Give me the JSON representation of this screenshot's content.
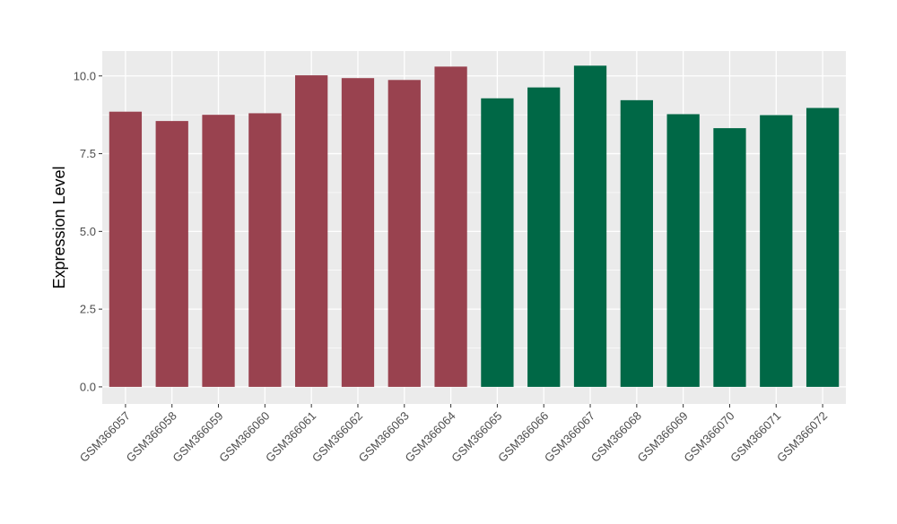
{
  "chart_data": {
    "type": "bar",
    "title": "",
    "xlabel": "",
    "ylabel": "Expression Level",
    "ylim": [
      -0.55,
      10.8
    ],
    "yticks": [
      0.0,
      2.5,
      5.0,
      7.5,
      10.0
    ],
    "ytick_labels": [
      "0.0",
      "2.5",
      "5.0",
      "7.5",
      "10.0"
    ],
    "categories": [
      "GSM366057",
      "GSM366058",
      "GSM366059",
      "GSM366060",
      "GSM366061",
      "GSM366062",
      "GSM366063",
      "GSM366064",
      "GSM366065",
      "GSM366066",
      "GSM366067",
      "GSM366068",
      "GSM366069",
      "GSM366070",
      "GSM366071",
      "GSM366072"
    ],
    "values": [
      8.85,
      8.55,
      8.75,
      8.8,
      10.02,
      9.93,
      9.87,
      10.3,
      9.28,
      9.63,
      10.33,
      9.22,
      8.77,
      8.32,
      8.74,
      8.97
    ],
    "bar_colors": [
      "#99424F",
      "#99424F",
      "#99424F",
      "#99424F",
      "#99424F",
      "#99424F",
      "#99424F",
      "#99424F",
      "#006846",
      "#006846",
      "#006846",
      "#006846",
      "#006846",
      "#006846",
      "#006846",
      "#006846"
    ],
    "grid": true,
    "legend": "none",
    "panel_background": "#EBEBEB",
    "grid_color": "#FFFFFF"
  }
}
